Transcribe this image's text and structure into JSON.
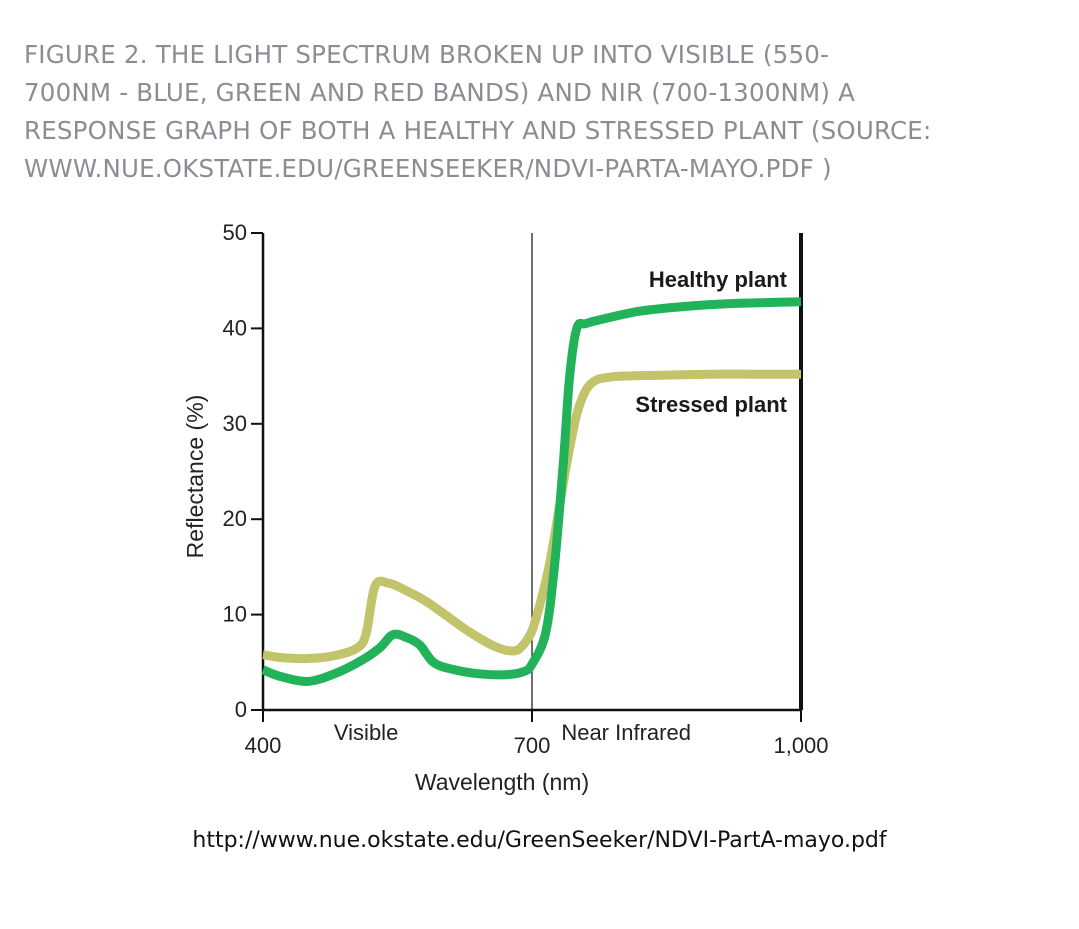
{
  "caption_lines": [
    "FIGURE 2. THE LIGHT SPECTRUM BROKEN UP INTO VISIBLE (550-",
    "700NM - BLUE, GREEN AND RED BANDS) AND NIR (700-1300NM) A",
    "RESPONSE GRAPH OF BOTH A HEALTHY AND STRESSED PLANT (SOURCE:",
    "WWW.NUE.OKSTATE.EDU/GREENSEEKER/NDVI-PARTA-MAYO.PDF )"
  ],
  "source_url": "http://www.nue.okstate.edu/GreenSeeker/NDVI-PartA-mayo.pdf",
  "chart_data": {
    "type": "line",
    "title": "",
    "xlabel": "Wavelength (nm)",
    "ylabel": "Reflectance (%)",
    "xlim": [
      400,
      1000
    ],
    "ylim": [
      0,
      50
    ],
    "x_ticks": [
      {
        "value": 400,
        "label": "400"
      },
      {
        "value": 700,
        "label": "700"
      },
      {
        "value": 1000,
        "label": "1,000"
      }
    ],
    "y_ticks": [
      {
        "value": 0,
        "label": "0"
      },
      {
        "value": 10,
        "label": "10"
      },
      {
        "value": 20,
        "label": "20"
      },
      {
        "value": 30,
        "label": "30"
      },
      {
        "value": 40,
        "label": "40"
      },
      {
        "value": 50,
        "label": "50"
      }
    ],
    "region_labels": [
      {
        "text": "Visible",
        "x": 515
      },
      {
        "text": "Near Infrared",
        "x": 805
      }
    ],
    "divider_x": 700,
    "grid": false,
    "series": [
      {
        "name": "Healthy plant",
        "color": "#22b35a",
        "x": [
          400,
          420,
          450,
          480,
          510,
          530,
          545,
          560,
          575,
          590,
          610,
          640,
          670,
          690,
          700,
          715,
          725,
          735,
          742,
          750,
          760,
          780,
          820,
          870,
          920,
          960,
          1000
        ],
        "y": [
          4.2,
          3.5,
          3.0,
          3.8,
          5.2,
          6.5,
          7.9,
          7.6,
          6.8,
          5.0,
          4.3,
          3.8,
          3.7,
          4.0,
          4.8,
          8.0,
          15.0,
          26.0,
          35.0,
          40.0,
          40.5,
          41.0,
          41.8,
          42.3,
          42.6,
          42.7,
          42.8
        ]
      },
      {
        "name": "Stressed plant",
        "color": "#c2c46b",
        "x": [
          400,
          420,
          450,
          480,
          505,
          515,
          525,
          540,
          560,
          580,
          600,
          630,
          660,
          680,
          690,
          700,
          710,
          720,
          730,
          740,
          750,
          760,
          770,
          780,
          800,
          850,
          900,
          950,
          1000
        ],
        "y": [
          5.8,
          5.5,
          5.4,
          5.7,
          6.5,
          8.0,
          13.0,
          13.3,
          12.5,
          11.5,
          10.2,
          8.2,
          6.6,
          6.2,
          6.8,
          8.3,
          11.5,
          15.5,
          21.0,
          26.5,
          31.0,
          33.5,
          34.5,
          34.8,
          35.0,
          35.1,
          35.2,
          35.2,
          35.2
        ]
      }
    ]
  }
}
